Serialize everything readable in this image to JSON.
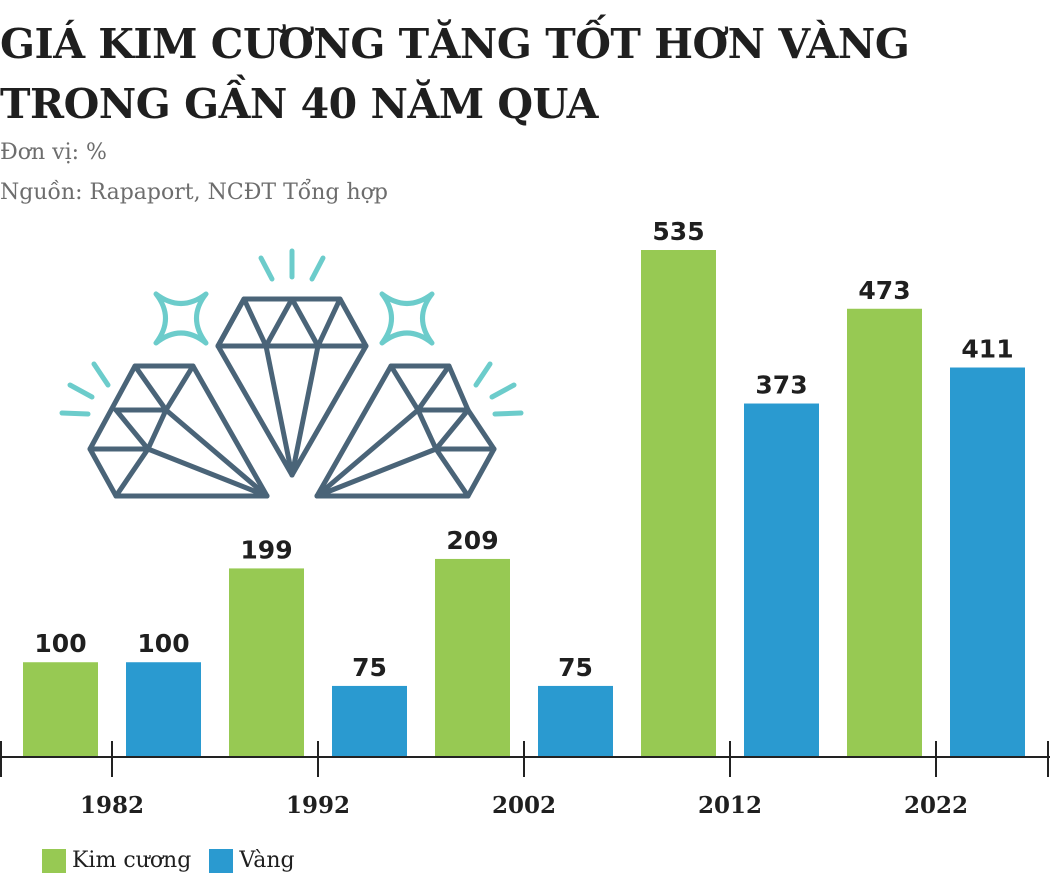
{
  "title_lines": [
    "GIÁ KIM CƯƠNG TĂNG TỐT HƠN VÀNG",
    "TRONG GẦN 40 NĂM QUA"
  ],
  "unit_label": "Đơn vị: %",
  "source_label": "Nguồn: Rapaport, NCĐT Tổng hợp",
  "colors": {
    "diamond": "#97c953",
    "gold": "#2a9ad0",
    "icon_outline": "#4a6478",
    "icon_sparkle": "#6ccccb"
  },
  "icon": "diamonds-sparkle-icon",
  "chart_data": {
    "type": "bar",
    "categories": [
      "1982",
      "1992",
      "2002",
      "2012",
      "2022"
    ],
    "series": [
      {
        "name": "Kim cương",
        "values": [
          100,
          199,
          209,
          535,
          473
        ]
      },
      {
        "name": "Vàng",
        "values": [
          100,
          75,
          75,
          373,
          411
        ]
      }
    ],
    "title": "GIÁ KIM CƯƠNG TĂNG TỐT HƠN VÀNG TRONG GẦN 40 NĂM QUA",
    "ylabel": "Đơn vị: %",
    "ylim": [
      0,
      535
    ],
    "grid": false,
    "legend": "bottom-left",
    "data_labels": true
  }
}
